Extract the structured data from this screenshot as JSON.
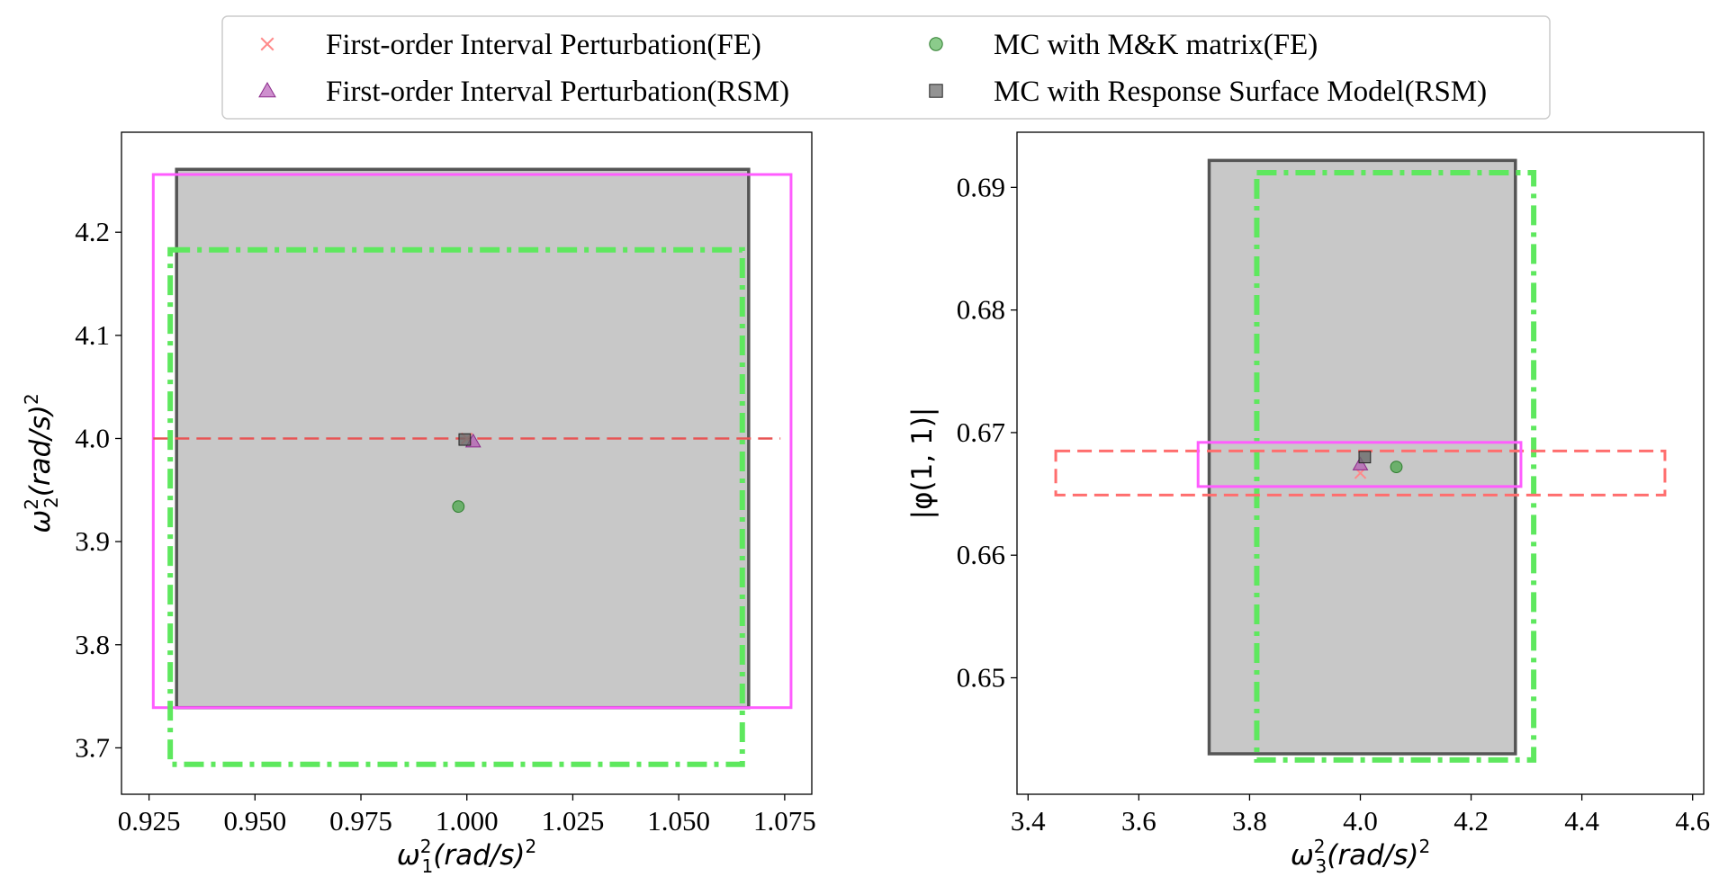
{
  "chart_data": [
    {
      "type": "scatter",
      "id": "left",
      "xlabel": {
        "sym": "ω",
        "sub": "1",
        "sup": "2",
        "unit": "(rad/s)",
        "unitSup": "2"
      },
      "ylabel": {
        "sym": "ω",
        "sub": "2",
        "sup": "2",
        "unit": "(rad/s)",
        "unitSup": "2"
      },
      "xlim": [
        0.9185,
        1.0814
      ],
      "ylim": [
        3.655,
        4.297
      ],
      "xticks": [
        0.925,
        0.95,
        0.975,
        1.0,
        1.025,
        1.05,
        1.075
      ],
      "xtick_labels": [
        "0.925",
        "0.950",
        "0.975",
        "1.000",
        "1.025",
        "1.050",
        "1.075"
      ],
      "yticks": [
        3.7,
        3.8,
        3.9,
        4.0,
        4.1,
        4.2
      ],
      "ytick_labels": [
        "3.7",
        "3.8",
        "3.9",
        "4.0",
        "4.1",
        "4.2"
      ],
      "boxes": [
        {
          "series": "MC with Response Surface Model(RSM)",
          "x": [
            0.9315,
            1.0665
          ],
          "y": [
            3.739,
            4.261
          ]
        },
        {
          "series": "First-order Interval Perturbation(RSM)",
          "x": [
            0.926,
            1.0765
          ],
          "y": [
            3.739,
            4.256
          ]
        },
        {
          "series": "MC with M&K matrix(FE)",
          "x": [
            0.93,
            1.065
          ],
          "y": [
            3.684,
            4.183
          ]
        },
        {
          "series": "First-order Interval Perturbation(FE)",
          "x": [
            0.926,
            1.074
          ],
          "y": [
            4.0,
            4.0
          ]
        }
      ],
      "points": [
        {
          "series": "First-order Interval Perturbation(FE)",
          "x": 1.0,
          "y": 4.0
        },
        {
          "series": "First-order Interval Perturbation(RSM)",
          "x": 1.0015,
          "y": 3.997
        },
        {
          "series": "MC with M&K matrix(FE)",
          "x": 0.998,
          "y": 3.934
        },
        {
          "series": "MC with Response Surface Model(RSM)",
          "x": 0.9995,
          "y": 3.999
        }
      ]
    },
    {
      "type": "scatter",
      "id": "right",
      "xlabel": {
        "sym": "ω",
        "sub": "3",
        "sup": "2",
        "unit": "(rad/s)",
        "unitSup": "2"
      },
      "ylabel": {
        "text": "|φ(1, 1)|"
      },
      "xlim": [
        3.38,
        4.62
      ],
      "ylim": [
        0.6405,
        0.6945
      ],
      "xticks": [
        3.4,
        3.6,
        3.8,
        4.0,
        4.2,
        4.4,
        4.6
      ],
      "xtick_labels": [
        "3.4",
        "3.6",
        "3.8",
        "4.0",
        "4.2",
        "4.4",
        "4.6"
      ],
      "yticks": [
        0.65,
        0.66,
        0.67,
        0.68,
        0.69
      ],
      "ytick_labels": [
        "0.65",
        "0.66",
        "0.67",
        "0.68",
        "0.69"
      ],
      "boxes": [
        {
          "series": "MC with Response Surface Model(RSM)",
          "x": [
            3.727,
            4.28
          ],
          "y": [
            0.6438,
            0.6922
          ]
        },
        {
          "series": "MC with M&K matrix(FE)",
          "x": [
            3.813,
            4.313
          ],
          "y": [
            0.6433,
            0.6912
          ]
        },
        {
          "series": "First-order Interval Perturbation(FE)",
          "x": [
            3.45,
            4.55
          ],
          "y": [
            0.6649,
            0.6685
          ]
        },
        {
          "series": "First-order Interval Perturbation(RSM)",
          "x": [
            3.707,
            4.29
          ],
          "y": [
            0.6656,
            0.6692
          ]
        }
      ],
      "points": [
        {
          "series": "First-order Interval Perturbation(FE)",
          "x": 4.0,
          "y": 0.6667
        },
        {
          "series": "First-order Interval Perturbation(RSM)",
          "x": 4.0,
          "y": 0.6674
        },
        {
          "series": "MC with M&K matrix(FE)",
          "x": 4.065,
          "y": 0.6672
        },
        {
          "series": "MC with Response Surface Model(RSM)",
          "x": 4.008,
          "y": 0.668
        }
      ]
    }
  ],
  "series_styles": {
    "First-order Interval Perturbation(FE)": {
      "color": "#ff6e6e",
      "linestyle": "dashed",
      "marker": "x"
    },
    "First-order Interval Perturbation(RSM)": {
      "color": "#ff5cff",
      "linestyle": "solid",
      "marker": "triangle"
    },
    "MC with M&K matrix(FE)": {
      "color": "#5ee85e",
      "linestyle": "dashdot",
      "marker": "circle"
    },
    "MC with Response Surface Model(RSM)": {
      "color": "#555555",
      "fill": "#c8c8c8",
      "linestyle": "solid",
      "marker": "square"
    }
  },
  "legend": {
    "placement": "top-center",
    "entries": [
      {
        "label": "First-order Interval Perturbation(FE)",
        "marker": "x",
        "color": "#ff8a8a"
      },
      {
        "label": "MC with M&K matrix(FE)",
        "marker": "circle",
        "color": "#77c277"
      },
      {
        "label": "First-order Interval Perturbation(RSM)",
        "marker": "triangle",
        "color": "#c57bc5"
      },
      {
        "label": "MC with Response Surface Model(RSM)",
        "marker": "square",
        "color": "#808080"
      }
    ]
  }
}
